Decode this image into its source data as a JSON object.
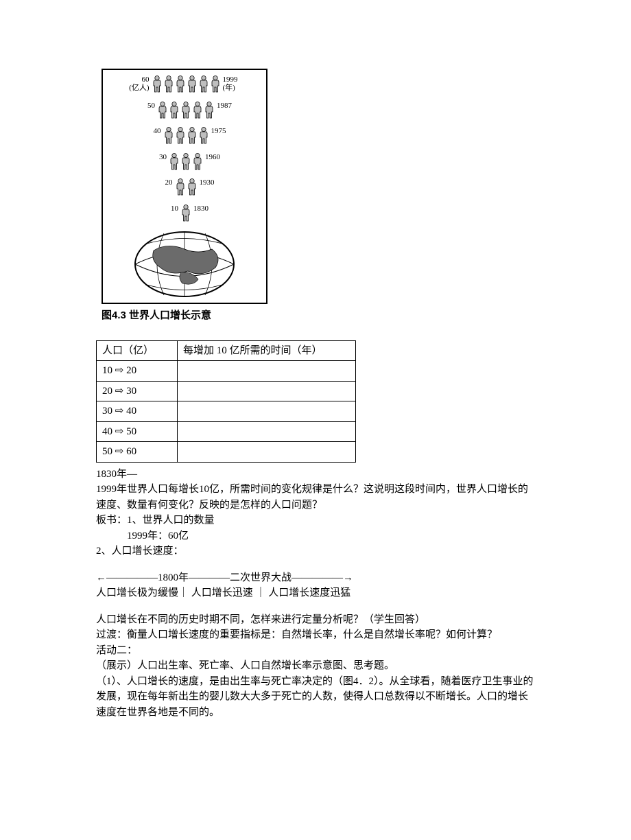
{
  "infographic": {
    "rows": [
      {
        "left_top": "60",
        "left_bottom": "(亿人)",
        "count": 6,
        "right_top": "1999",
        "right_bottom": "(年)"
      },
      {
        "left_top": "50",
        "left_bottom": "",
        "count": 5,
        "right_top": "1987",
        "right_bottom": ""
      },
      {
        "left_top": "40",
        "left_bottom": "",
        "count": 4,
        "right_top": "1975",
        "right_bottom": ""
      },
      {
        "left_top": "30",
        "left_bottom": "",
        "count": 3,
        "right_top": "1960",
        "right_bottom": ""
      },
      {
        "left_top": "20",
        "left_bottom": "",
        "count": 2,
        "right_top": "1930",
        "right_bottom": ""
      },
      {
        "left_top": "10",
        "left_bottom": "",
        "count": 1,
        "right_top": "1830",
        "right_bottom": ""
      }
    ],
    "person_fill": "#bfbfbf",
    "person_stroke": "#000000",
    "globe_stroke": "#000000",
    "globe_fill": "#ffffff",
    "globe_land_fill": "#6b6b6b"
  },
  "caption": "图4.3  世界人口增长示意",
  "table": {
    "headers": [
      "人口（亿）",
      "每增加 10 亿所需的时间（年）"
    ],
    "rows": [
      [
        "10 ⇨ 20",
        ""
      ],
      [
        "20 ⇨ 30",
        ""
      ],
      [
        "30 ⇨ 40",
        ""
      ],
      [
        "40 ⇨ 50",
        ""
      ],
      [
        "50 ⇨ 60",
        ""
      ]
    ]
  },
  "body": {
    "p1": "1830年—",
    "p2": "1999年世界人口每增长10亿，所需时间的变化规律是什么？这说明这段时间内，世界人口增长的速度、数量有何变化？反映的是怎样的人口问题？",
    "p3": "板书：1、世界人口的数量",
    "p4": "1999年：60亿",
    "p5": "2、人口增长速度：",
    "timeline1": "←—————1800年————二次世界大战—————→",
    "timeline2": "人口增长极为缓慢｜    人口增长迅速    ｜    人口增长速度迅猛",
    "p6": "人口增长在不同的历史时期不同，怎样来进行定量分析呢？（学生回答）",
    "p7": "过渡：衡量人口增长速度的重要指标是：自然增长率，什么是自然增长率呢？如何计算？",
    "p8": "活动二：",
    "p9": "（展示）人口出生率、死亡率、人口自然增长率示意图、思考题。",
    "p10": "（1）、人口增长的速度，是由出生率与死亡率决定的（图4．2）。从全球看，随着医疗卫生事业的发展，现在每年新出生的婴儿数大大多于死亡的人数，使得人口总数得以不断增长。人口的增长速度在世界各地是不同的。"
  }
}
